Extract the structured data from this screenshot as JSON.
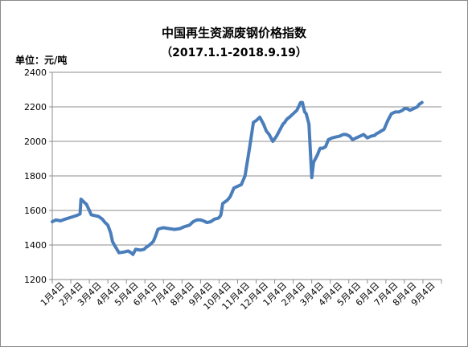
{
  "chart_data": {
    "type": "line",
    "title": "中国再生资源废钢价格指数",
    "subtitle": "（2017.1.1-2018.9.19）",
    "unit_label": "单位：元/吨",
    "ylim": [
      1200,
      2400
    ],
    "yticks": [
      1200,
      1400,
      1600,
      1800,
      2000,
      2200,
      2400
    ],
    "grid": true,
    "line_color": "#4a7ebb",
    "categories": [
      "1月4日",
      "2月4日",
      "3月4日",
      "4月4日",
      "5月4日",
      "6月4日",
      "7月4日",
      "8月4日",
      "9月4日",
      "10月4日",
      "11月4日",
      "12月4日",
      "1月4日",
      "2月4日",
      "3月4日",
      "4月4日",
      "5月4日",
      "6月4日",
      "7月4日",
      "8月4日",
      "9月4日"
    ],
    "series": [
      {
        "x": [
          0,
          0.2,
          0.45,
          0.7,
          1.0,
          1.3,
          1.5,
          1.55,
          1.7,
          1.85,
          2.0,
          2.1,
          2.3,
          2.5,
          2.7,
          2.85,
          3.0,
          3.05,
          3.15,
          3.25,
          3.35,
          3.6,
          3.9,
          4.1,
          4.25,
          4.35,
          4.5,
          4.75,
          4.95,
          5.05,
          5.25,
          5.45,
          5.55,
          5.7,
          5.8,
          6.0,
          6.3,
          6.6,
          6.9,
          7.1,
          7.4,
          7.6,
          7.8,
          8.0,
          8.15,
          8.35,
          8.55,
          8.75,
          8.95,
          9.05,
          9.1,
          9.2,
          9.45,
          9.6,
          9.8,
          10.0,
          10.2,
          10.4,
          10.55,
          10.7,
          10.85,
          11.0,
          11.2,
          11.4,
          11.55,
          11.7,
          11.9,
          12.1,
          12.25,
          12.35,
          12.45,
          12.55,
          12.6,
          12.68,
          12.8,
          13.0,
          13.2,
          13.4,
          13.5,
          13.55,
          13.62,
          13.7,
          13.85,
          14.0,
          14.1,
          14.3,
          14.45,
          14.6,
          14.75,
          14.9,
          15.1,
          15.3,
          15.5,
          15.7,
          15.85,
          16.05,
          16.2,
          16.4,
          16.6,
          16.8,
          17.0,
          17.2,
          17.4,
          17.5,
          17.6,
          17.75,
          17.9,
          18.1,
          18.3,
          18.5,
          18.7,
          18.9,
          19.0,
          19.15,
          19.3,
          19.5,
          19.7,
          19.8,
          19.95
        ],
        "values": [
          1535,
          1545,
          1540,
          1550,
          1560,
          1570,
          1580,
          1665,
          1650,
          1635,
          1600,
          1575,
          1570,
          1565,
          1550,
          1530,
          1515,
          1500,
          1470,
          1420,
          1400,
          1355,
          1360,
          1365,
          1355,
          1345,
          1375,
          1370,
          1375,
          1385,
          1400,
          1420,
          1445,
          1490,
          1495,
          1500,
          1495,
          1490,
          1495,
          1505,
          1515,
          1535,
          1545,
          1545,
          1540,
          1530,
          1535,
          1550,
          1555,
          1565,
          1575,
          1640,
          1660,
          1680,
          1730,
          1740,
          1750,
          1800,
          1900,
          2000,
          2110,
          2120,
          2140,
          2100,
          2060,
          2040,
          2000,
          2030,
          2060,
          2080,
          2100,
          2110,
          2120,
          2130,
          2140,
          2160,
          2180,
          2225,
          2225,
          2200,
          2170,
          2160,
          2100,
          1790,
          1880,
          1920,
          1960,
          1960,
          1970,
          2010,
          2020,
          2025,
          2030,
          2040,
          2040,
          2030,
          2010,
          2020,
          2030,
          2040,
          2020,
          2030,
          2035,
          2045,
          2050,
          2060,
          2070,
          2120,
          2160,
          2170,
          2170,
          2180,
          2190,
          2190,
          2180,
          2190,
          2200,
          2215,
          2225
        ]
      }
    ]
  }
}
